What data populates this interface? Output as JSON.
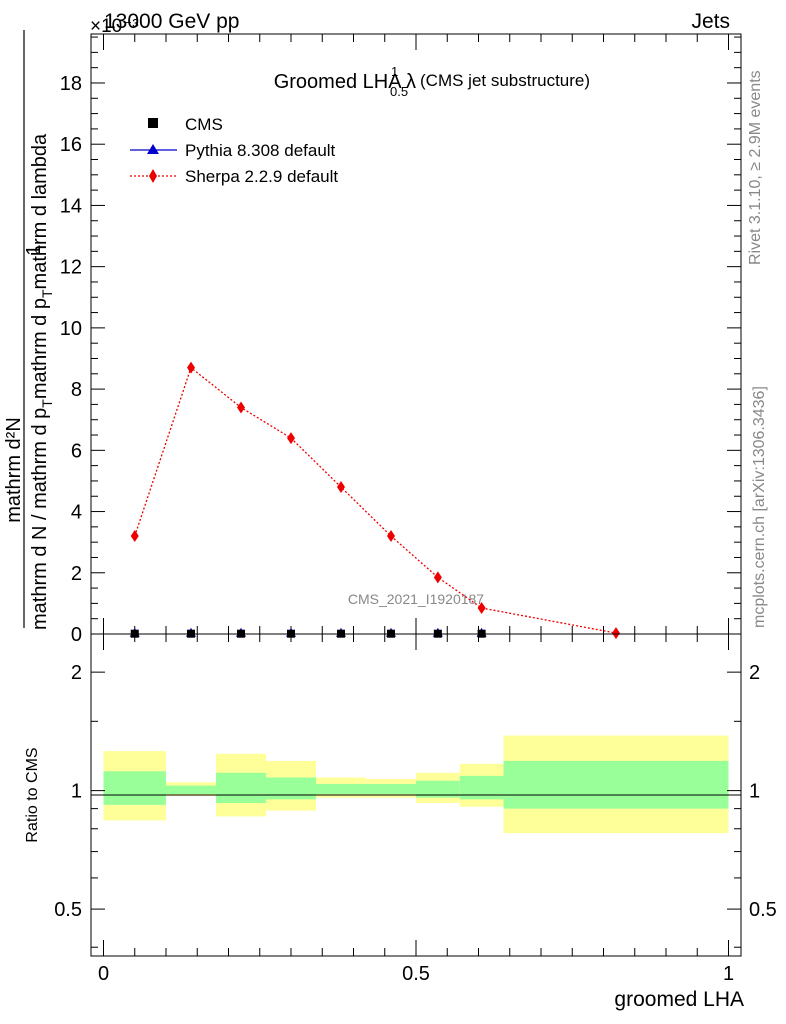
{
  "header": {
    "left": "13000 GeV pp",
    "right": "Jets",
    "exponent": "×10⁻³"
  },
  "side_labels": {
    "rivet": "Rivet 3.1.10, ≥ 2.9M events",
    "mcplots": "mcplots.cern.ch [arXiv:1306.3436]"
  },
  "watermark": "CMS_2021_I1920187",
  "colors": {
    "data": "#000000",
    "pythia": "#0000cc",
    "sherpa": "#ee0000",
    "band_inner": "#99ff99",
    "band_outer": "#ffff99"
  },
  "chart_data": [
    {
      "type": "line",
      "title": "Groomed LHA λ",
      "title_sup": "1",
      "title_sub": "0.5",
      "title_suffix": "(CMS jet substructure)",
      "ylabel_numerator": "mathrm d²N",
      "ylabel_numerator_one": "1",
      "ylabel_denominator": "mathrm d N / mathrm d p",
      "ylabel_den_sub": "T",
      "ylabel_den_rest": "mathrm d p",
      "ylabel_den_sub2": "T",
      "ylabel_den_rest2": "mathrm d lambda",
      "ylim": [
        0,
        19.6
      ],
      "y_ticks": [
        0,
        2,
        4,
        6,
        8,
        10,
        12,
        14,
        16,
        18
      ],
      "xlim": [
        -0.02,
        1.02
      ],
      "legend_position": "top-left",
      "series": [
        {
          "name": "CMS",
          "marker": "square",
          "x": [
            0.05,
            0.14,
            0.22,
            0.3,
            0.38,
            0.46,
            0.535,
            0.605
          ],
          "y": [
            0.01,
            0.01,
            0.01,
            0.01,
            0.01,
            0.01,
            0.01,
            0.01
          ]
        },
        {
          "name": "Pythia 8.308 default",
          "marker": "triangle",
          "x": [
            0.05,
            0.14,
            0.22,
            0.3,
            0.38,
            0.46,
            0.535,
            0.605
          ],
          "y": [
            0.01,
            0.01,
            0.01,
            0.01,
            0.01,
            0.01,
            0.01,
            0.01
          ]
        },
        {
          "name": "Sherpa 2.2.9 default",
          "marker": "diamond",
          "x": [
            0.05,
            0.14,
            0.22,
            0.3,
            0.38,
            0.46,
            0.535,
            0.605,
            0.82
          ],
          "y": [
            3.2,
            8.7,
            7.4,
            6.4,
            4.8,
            3.2,
            1.85,
            0.85,
            0.03
          ]
        }
      ]
    },
    {
      "type": "area",
      "ylabel": "Ratio to CMS",
      "xlabel": "groomed LHA",
      "ylim": [
        0.38,
        2.5
      ],
      "log_y": true,
      "y_ticks": [
        0.5,
        1,
        2
      ],
      "y_tick_labels": [
        "0.5",
        "1",
        "2"
      ],
      "x_ticks": [
        0,
        0.5,
        1
      ],
      "x_tick_labels": [
        "0",
        "0.5",
        "1"
      ],
      "bins": [
        {
          "x0": 0.0,
          "x1": 0.1,
          "inner": [
            0.92,
            1.12
          ],
          "outer": [
            0.84,
            1.26
          ]
        },
        {
          "x0": 0.1,
          "x1": 0.18,
          "inner": [
            0.98,
            1.03
          ],
          "outer": [
            0.97,
            1.05
          ]
        },
        {
          "x0": 0.18,
          "x1": 0.26,
          "inner": [
            0.93,
            1.11
          ],
          "outer": [
            0.86,
            1.24
          ]
        },
        {
          "x0": 0.26,
          "x1": 0.34,
          "inner": [
            0.95,
            1.08
          ],
          "outer": [
            0.89,
            1.19
          ]
        },
        {
          "x0": 0.34,
          "x1": 0.42,
          "inner": [
            0.98,
            1.04
          ],
          "outer": [
            0.96,
            1.08
          ]
        },
        {
          "x0": 0.42,
          "x1": 0.5,
          "inner": [
            0.98,
            1.04
          ],
          "outer": [
            0.96,
            1.07
          ]
        },
        {
          "x0": 0.5,
          "x1": 0.57,
          "inner": [
            0.96,
            1.06
          ],
          "outer": [
            0.93,
            1.11
          ]
        },
        {
          "x0": 0.57,
          "x1": 0.64,
          "inner": [
            0.95,
            1.09
          ],
          "outer": [
            0.91,
            1.17
          ]
        },
        {
          "x0": 0.64,
          "x1": 1.0,
          "inner": [
            0.9,
            1.19
          ],
          "outer": [
            0.78,
            1.38
          ]
        }
      ]
    }
  ]
}
